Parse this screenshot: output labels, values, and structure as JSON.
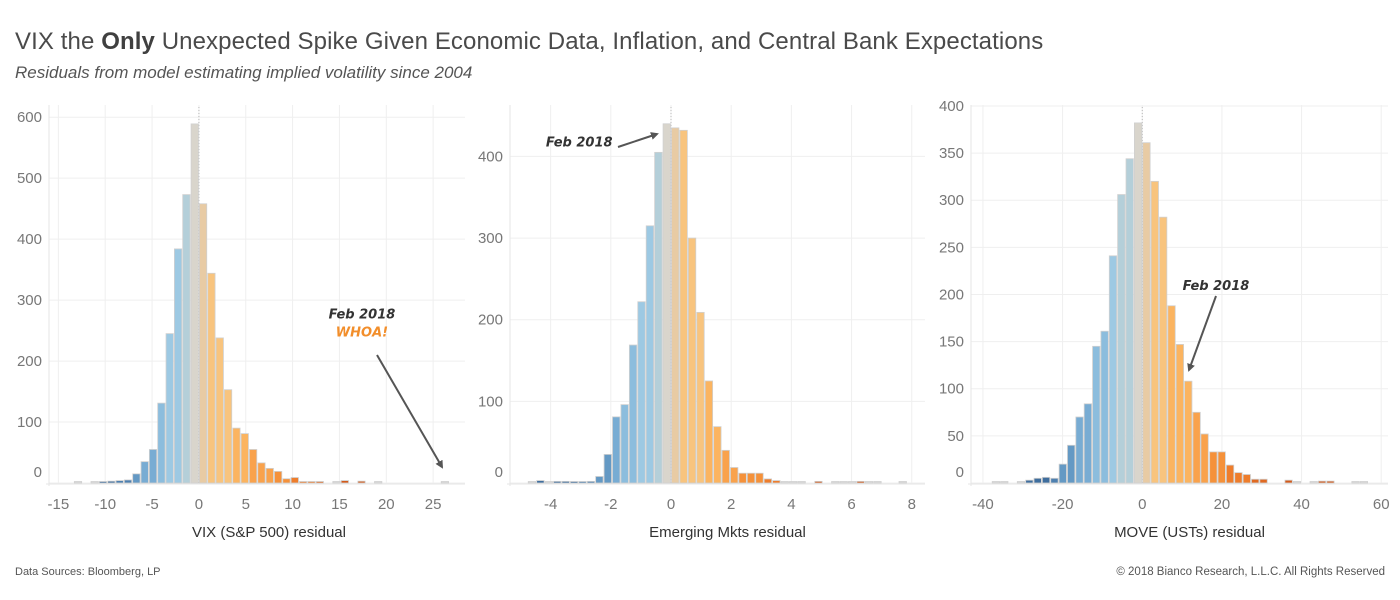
{
  "header": {
    "title_pre": "VIX the ",
    "title_bold": "Only",
    "title_post": " Unexpected Spike Given Economic Data, Inflation, and Central Bank Expectations",
    "subtitle": "Residuals from model estimating implied volatility since 2004"
  },
  "footer": {
    "source": "Data Sources: Bloomberg, LP",
    "copyright": "© 2018 Bianco Research, L.L.C. All Rights Reserved"
  },
  "colors": {
    "gridline": "#efefef",
    "bar_stroke": "#d0d0d0",
    "arrow": "#555555",
    "annotation_dark": "#333333",
    "annotation_orange": "#f28e2b",
    "palette": [
      "#3f6e9e",
      "#4e80b0",
      "#6499c4",
      "#78acd3",
      "#8cbddd",
      "#9dc9e3",
      "#b4cfd9",
      "#d9d5cc",
      "#e8cba4",
      "#f8c47e",
      "#fbb460",
      "#f9a24c",
      "#f5913a",
      "#ee7d2c",
      "#e06a22",
      "#d35a1a"
    ]
  },
  "chart_data": [
    {
      "type": "bar",
      "subtype": "histogram",
      "title": "",
      "xlabel": "VIX (S&P 500) residual",
      "ylabel": "",
      "xlim": [
        -16,
        28.4
      ],
      "ylim": [
        0,
        620
      ],
      "xticks": [
        -15,
        -10,
        -5,
        0,
        5,
        10,
        15,
        20,
        25
      ],
      "yticks": [
        0,
        100,
        200,
        300,
        400,
        500,
        600
      ],
      "grid": true,
      "bin_width": 0.89,
      "bins_start": [
        -13.35,
        -11.57,
        -10.68,
        -9.79,
        -8.9,
        -8.01,
        -7.12,
        -6.23,
        -5.34,
        -4.45,
        -3.56,
        -2.67,
        -1.78,
        -0.89,
        0,
        0.89,
        1.78,
        2.67,
        3.56,
        4.45,
        5.34,
        6.23,
        7.12,
        8.01,
        8.9,
        9.79,
        10.68,
        11.57,
        12.46,
        14.24,
        15.13,
        16.91,
        18.69,
        25.81
      ],
      "values": [
        1,
        1,
        1,
        3,
        4,
        5,
        15,
        35,
        55,
        131,
        245,
        384,
        473,
        589,
        458,
        344,
        238,
        153,
        90,
        81,
        55,
        33,
        24,
        19,
        7,
        9,
        2,
        2,
        2,
        1,
        4,
        3,
        1,
        1
      ],
      "annotations": [
        {
          "text": "Feb 2018",
          "x": 17.4,
          "y": 270
        },
        {
          "text": "WHOA!",
          "x": 17.4,
          "y": 240
        }
      ]
    },
    {
      "type": "bar",
      "subtype": "histogram",
      "title": "",
      "xlabel": "Emerging Mkts residual",
      "ylabel": "",
      "xlim": [
        -5.35,
        8.44
      ],
      "ylim": [
        0,
        463
      ],
      "xticks": [
        -4,
        -2,
        0,
        2,
        4,
        6,
        8
      ],
      "yticks": [
        0,
        100,
        200,
        300,
        400
      ],
      "grid": true,
      "bin_width": 0.28,
      "bins_start": [
        -4.76,
        -4.48,
        -4.2,
        -3.92,
        -3.64,
        -3.36,
        -3.08,
        -2.8,
        -2.52,
        -2.24,
        -1.96,
        -1.68,
        -1.4,
        -1.12,
        -0.84,
        -0.56,
        -0.28,
        0,
        0.28,
        0.56,
        0.84,
        1.12,
        1.4,
        1.68,
        1.96,
        2.24,
        2.52,
        2.8,
        3.08,
        3.36,
        3.64,
        3.92,
        4.2,
        4.76,
        5.32,
        5.6,
        5.88,
        6.16,
        6.44,
        6.72,
        7.56
      ],
      "values": [
        1,
        3,
        1,
        2,
        2,
        1,
        1,
        2,
        8,
        35,
        81,
        96,
        169,
        222,
        315,
        405,
        440,
        435,
        432,
        300,
        209,
        125,
        69,
        40,
        19,
        12,
        12,
        12,
        5,
        3,
        1,
        1,
        1,
        2,
        1,
        1,
        1,
        2,
        1,
        1,
        1
      ],
      "annotations": [
        {
          "text": "Feb 2018",
          "x": -3.05,
          "y": 412
        }
      ]
    },
    {
      "type": "bar",
      "subtype": "histogram",
      "title": "",
      "xlabel": "MOVE (USTs) residual",
      "ylabel": "",
      "xlim": [
        -43,
        61.7
      ],
      "ylim": [
        0,
        401
      ],
      "xticks": [
        -40,
        -20,
        0,
        20,
        40,
        60
      ],
      "yticks": [
        0,
        50,
        100,
        150,
        200,
        250,
        300,
        350,
        400
      ],
      "grid": true,
      "bin_width": 2.1,
      "bins_start": [
        -37.8,
        -35.7,
        -31.5,
        -29.4,
        -27.3,
        -25.2,
        -23.1,
        -21,
        -18.9,
        -16.8,
        -14.7,
        -12.6,
        -10.5,
        -8.4,
        -6.3,
        -4.2,
        -2.1,
        0,
        2.1,
        4.2,
        6.3,
        8.4,
        10.5,
        12.6,
        14.6,
        16.8,
        18.9,
        21,
        23.1,
        25.2,
        27.3,
        29.4,
        35.7,
        37.8,
        42,
        44.1,
        46.2,
        52.5,
        54.6
      ],
      "values": [
        1,
        1,
        1,
        3,
        5,
        6,
        5,
        20,
        40,
        70,
        84,
        145,
        161,
        241,
        306,
        344,
        382,
        361,
        320,
        282,
        188,
        147,
        108,
        75,
        52,
        33,
        33,
        19,
        11,
        9,
        4,
        4,
        3,
        1,
        1,
        2,
        2,
        1,
        1
      ],
      "annotations": [
        {
          "text": "Feb 2018",
          "x": 18.5,
          "y": 205
        }
      ]
    }
  ]
}
